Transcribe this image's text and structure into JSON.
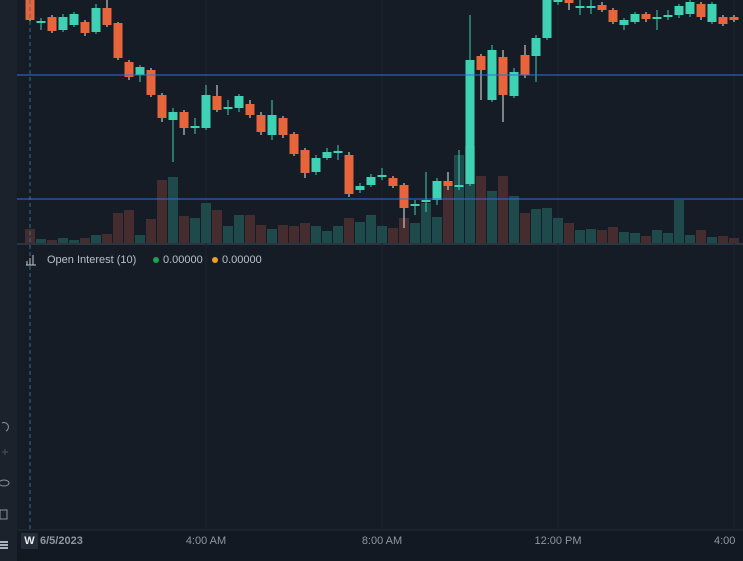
{
  "chart_data": {
    "type": "candlestick",
    "categories": [
      null,
      null,
      null,
      null,
      null,
      null,
      null,
      null,
      null,
      null,
      null,
      null,
      null,
      null,
      null,
      null,
      null,
      null,
      null,
      null,
      null,
      null,
      null,
      null,
      null,
      null,
      null,
      null,
      null,
      null,
      null,
      null,
      null,
      null,
      null,
      null,
      null,
      null,
      null,
      null,
      null,
      null,
      null,
      null,
      null,
      null,
      null,
      null,
      null,
      null,
      null,
      null,
      null,
      null,
      null,
      null,
      null,
      null,
      null,
      null,
      null,
      null,
      null,
      null,
      null
    ],
    "open": [
      243,
      220,
      226,
      213,
      218,
      221,
      211,
      235,
      220,
      181,
      168,
      173,
      148,
      123,
      131,
      115,
      115,
      147,
      134,
      135,
      139,
      128,
      108,
      125,
      109,
      93,
      71,
      85,
      90,
      88,
      53,
      58,
      66,
      65,
      58,
      37,
      41,
      43,
      62,
      56,
      59,
      187,
      143,
      186,
      147,
      188,
      187,
      205,
      241,
      243,
      235,
      235,
      238,
      233,
      218,
      221,
      229,
      224,
      226,
      228,
      229,
      239,
      221,
      226,
      226
    ],
    "high": [
      243,
      225,
      228,
      229,
      231,
      223,
      239,
      243,
      221,
      183,
      178,
      175,
      150,
      135,
      133,
      125,
      158,
      158,
      143,
      149,
      143,
      131,
      143,
      127,
      111,
      95,
      88,
      95,
      98,
      91,
      60,
      69,
      75,
      67,
      60,
      43,
      71,
      65,
      71,
      93,
      228,
      189,
      198,
      193,
      175,
      198,
      208,
      243,
      243,
      243,
      243,
      243,
      241,
      235,
      225,
      231,
      231,
      233,
      233,
      239,
      243,
      241,
      241,
      228,
      228
    ],
    "low": [
      221,
      213,
      210,
      211,
      216,
      207,
      209,
      216,
      183,
      163,
      161,
      146,
      121,
      81,
      108,
      109,
      113,
      131,
      128,
      131,
      125,
      108,
      103,
      105,
      87,
      65,
      68,
      83,
      83,
      46,
      50,
      56,
      63,
      55,
      15,
      28,
      31,
      38,
      53,
      53,
      57,
      143,
      141,
      121,
      145,
      165,
      161,
      203,
      238,
      233,
      228,
      229,
      231,
      219,
      213,
      219,
      221,
      213,
      223,
      225,
      226,
      223,
      219,
      217,
      221
    ],
    "close": [
      223,
      222,
      212,
      226,
      229,
      210,
      235,
      218,
      185,
      166,
      176,
      148,
      125,
      131,
      115,
      117,
      148,
      133,
      136,
      147,
      128,
      111,
      128,
      108,
      89,
      70,
      85,
      91,
      92,
      49,
      57,
      66,
      68,
      57,
      35,
      39,
      43,
      62,
      57,
      58,
      183,
      173,
      193,
      148,
      171,
      168,
      205,
      243,
      243,
      240,
      237,
      237,
      233,
      221,
      223,
      229,
      224,
      226,
      228,
      237,
      241,
      226,
      239,
      219,
      223
    ],
    "volume": [
      14,
      4,
      3,
      5,
      3,
      5,
      8,
      9,
      30,
      33,
      8,
      24,
      63,
      66,
      27,
      25,
      40,
      33,
      17,
      28,
      28,
      18,
      14,
      18,
      17,
      20,
      17,
      12,
      17,
      25,
      21,
      28,
      17,
      15,
      25,
      20,
      40,
      26,
      62,
      88,
      97,
      67,
      52,
      67,
      47,
      30,
      34,
      35,
      25,
      20,
      13,
      14,
      13,
      16,
      11,
      10,
      7,
      13,
      10,
      43,
      8,
      13,
      6,
      7,
      5
    ],
    "up_color": "#3fd1b3",
    "down_color": "#e8643a",
    "volume_up_color": "#1f4a4b",
    "volume_down_color": "#452c2e",
    "ylim": [
      0,
      243
    ],
    "volume_lim": [
      0,
      243
    ],
    "hlines": [
      168,
      44
    ],
    "hline_color": "#2f6fd6",
    "xticks": [
      {
        "value": 16,
        "label": "4:00 AM"
      },
      {
        "value": 32,
        "label": "8:00 AM"
      },
      {
        "value": 48,
        "label": "12:00 PM"
      },
      {
        "value": 64,
        "label": "4:00"
      }
    ],
    "date_label": "6/5/2023",
    "interval_label": "W",
    "indicator": {
      "name": "Open Interest (10)",
      "values": [
        "0.00000",
        "0.00000"
      ],
      "colors": [
        "#1fa34a",
        "#f0a020"
      ]
    },
    "grid": true
  }
}
